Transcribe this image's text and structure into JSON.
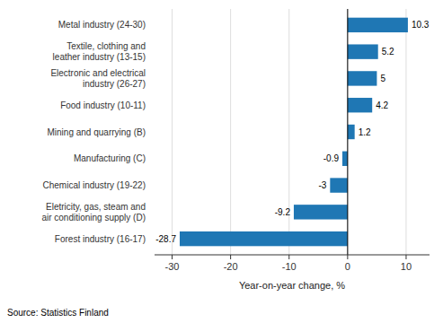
{
  "chart_data": {
    "type": "bar",
    "orientation": "horizontal",
    "categories": [
      "Forest industry (16-17)",
      "Eletricity, gas, steam and\nair conditioning supply (D)",
      "Chemical industry (19-22)",
      "Manufacturing (C)",
      "Mining and quarrying (B)",
      "Food industry (10-11)",
      "Electronic and electrical\nindustry (26-27)",
      "Textile, clothing and\nleather industry (13-15)",
      "Metal industry (24-30)"
    ],
    "values": [
      -28.7,
      -9.2,
      -3.0,
      -0.9,
      1.2,
      4.2,
      5.0,
      5.2,
      10.3
    ],
    "color": "#1f77b4",
    "xlim": [
      -33,
      14
    ],
    "xticks": [
      -30,
      -20,
      -10,
      0,
      10
    ],
    "xlabel": "Year-on-year change, %",
    "annotations": [
      "Source: Statistics Finland"
    ],
    "grid": true,
    "data_labels": true
  }
}
